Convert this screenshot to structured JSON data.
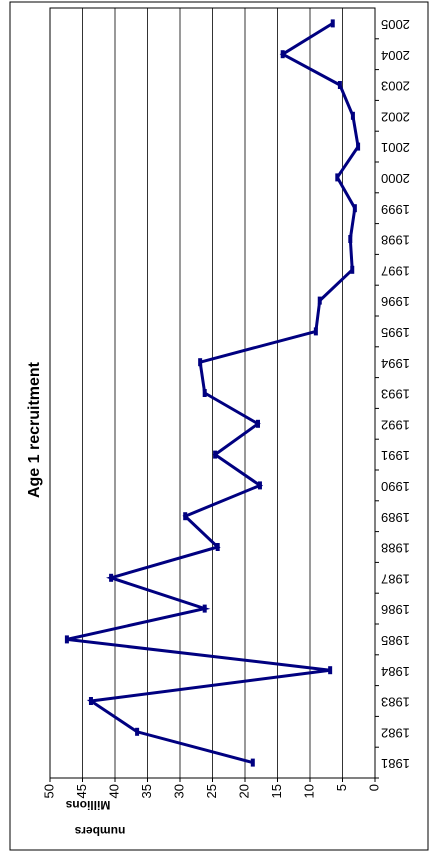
{
  "chart_data": {
    "type": "line",
    "title": "Age 1 recruitment",
    "y_label": "numbers",
    "y_unit": "Millions",
    "categories": [
      "1981",
      "1982",
      "1983",
      "1984",
      "1985",
      "1986",
      "1987",
      "1988",
      "1989",
      "1990",
      "1991",
      "1992",
      "1993",
      "1994",
      "1995",
      "1996",
      "1997",
      "1998",
      "1999",
      "2000",
      "2001",
      "2002",
      "2003",
      "2004",
      "2005"
    ],
    "series": [
      {
        "name": "Age 1 recruitment",
        "color": "#000080",
        "values": [
          18.8,
          36.6,
          43.7,
          6.9,
          47.4,
          26.2,
          40.6,
          24.2,
          29.2,
          17.7,
          24.6,
          18.0,
          26.2,
          26.9,
          9.1,
          8.5,
          3.5,
          3.8,
          3.1,
          5.8,
          2.6,
          3.4,
          5.4,
          14.2,
          6.5
        ]
      }
    ],
    "ylim": [
      0,
      50
    ],
    "yticks": [
      0,
      5,
      10,
      15,
      20,
      25,
      30,
      35,
      40,
      45,
      50
    ],
    "grid": true,
    "rotation": -90
  }
}
